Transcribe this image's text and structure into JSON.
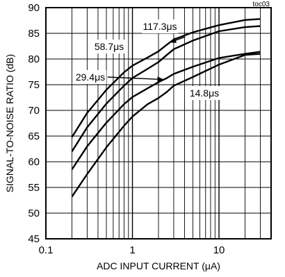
{
  "chart_data": {
    "type": "line",
    "title": "",
    "corner_tag": "toc03",
    "xlabel": "ADC INPUT CURRENT (μA)",
    "ylabel": "SIGNAL-TO-NOISE RATIO (dB)",
    "x_scale": "log",
    "xlim": [
      0.1,
      40
    ],
    "ylim": [
      45,
      90
    ],
    "x_ticks": [
      0.1,
      1,
      10
    ],
    "x_tick_labels": [
      "0.1",
      "1",
      "10"
    ],
    "y_ticks": [
      45,
      50,
      55,
      60,
      65,
      70,
      75,
      80,
      85,
      90
    ],
    "y_tick_labels": [
      "45",
      "50",
      "55",
      "60",
      "65",
      "70",
      "75",
      "80",
      "85",
      "90"
    ],
    "grid": true,
    "series": [
      {
        "name": "117.3μs",
        "x": [
          0.2,
          0.3,
          0.5,
          0.8,
          1.0,
          1.5,
          2.0,
          2.5,
          3.0,
          5.0,
          10.0,
          20.0,
          30.0
        ],
        "y": [
          64.8,
          69.5,
          74.0,
          77.4,
          78.7,
          80.3,
          81.5,
          82.8,
          83.8,
          85.2,
          86.6,
          87.6,
          87.8
        ]
      },
      {
        "name": "58.7μs",
        "x": [
          0.2,
          0.3,
          0.5,
          0.8,
          1.0,
          1.5,
          2.0,
          2.5,
          3.0,
          5.0,
          10.0,
          20.0,
          30.0
        ],
        "y": [
          62.0,
          66.7,
          71.3,
          74.8,
          76.3,
          78.1,
          79.4,
          80.8,
          81.9,
          83.6,
          85.4,
          86.2,
          86.4
        ]
      },
      {
        "name": "29.4μs",
        "x": [
          0.2,
          0.3,
          0.5,
          0.8,
          1.0,
          1.5,
          2.0,
          2.5,
          3.0,
          5.0,
          10.0,
          20.0,
          30.0
        ],
        "y": [
          58.5,
          63.0,
          67.6,
          71.2,
          72.6,
          74.3,
          75.5,
          76.3,
          77.1,
          78.5,
          80.2,
          81.0,
          81.4
        ]
      },
      {
        "name": "14.8μs",
        "x": [
          0.2,
          0.3,
          0.5,
          0.8,
          1.0,
          1.5,
          2.0,
          2.5,
          3.0,
          5.0,
          10.0,
          20.0,
          30.0
        ],
        "y": [
          53.2,
          57.6,
          62.8,
          67.0,
          68.8,
          71.2,
          72.4,
          73.6,
          74.8,
          76.5,
          78.9,
          80.8,
          81.0
        ]
      }
    ],
    "annotations": [
      {
        "label": "117.3μs",
        "series": "117.3μs",
        "arrow_at_x": 2.7
      },
      {
        "label": "58.7μs",
        "series": "58.7μs"
      },
      {
        "label": "29.4μs",
        "series": "29.4μs",
        "arrow_at_x": 2.3
      },
      {
        "label": "14.8μs",
        "series": "14.8μs"
      }
    ]
  }
}
